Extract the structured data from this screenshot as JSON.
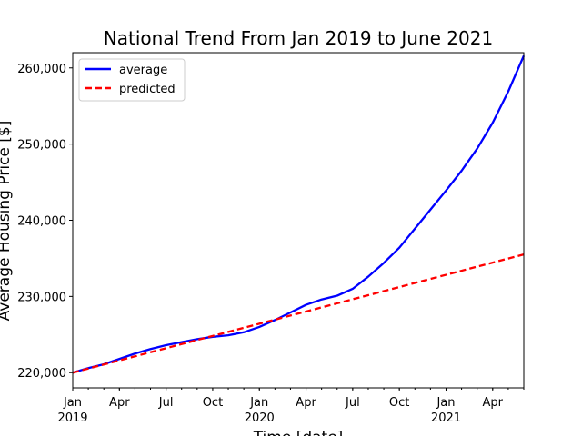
{
  "chart_data": {
    "type": "line",
    "title": "National Trend From Jan 2019 to June 2021",
    "xlabel": "Time [date]",
    "ylabel": "Average Housing Price [$]",
    "x": [
      "2019-01",
      "2019-02",
      "2019-03",
      "2019-04",
      "2019-05",
      "2019-06",
      "2019-07",
      "2019-08",
      "2019-09",
      "2019-10",
      "2019-11",
      "2019-12",
      "2020-01",
      "2020-02",
      "2020-03",
      "2020-04",
      "2020-05",
      "2020-06",
      "2020-07",
      "2020-08",
      "2020-09",
      "2020-10",
      "2020-11",
      "2020-12",
      "2021-01",
      "2021-02",
      "2021-03",
      "2021-04",
      "2021-05",
      "2021-06"
    ],
    "series": [
      {
        "name": "average",
        "color": "#0000ff",
        "style": "solid",
        "values": [
          220000,
          220600,
          221100,
          221800,
          222500,
          223100,
          223600,
          224000,
          224400,
          224700,
          224900,
          225300,
          226000,
          226900,
          227900,
          228900,
          229600,
          230100,
          231000,
          232600,
          234400,
          236400,
          238900,
          241400,
          243900,
          246500,
          249400,
          252800,
          256900,
          261600
        ]
      },
      {
        "name": "predicted",
        "color": "#ff0000",
        "style": "dashed",
        "values": [
          220000,
          220535,
          221070,
          221605,
          222140,
          222675,
          223210,
          223745,
          224280,
          224815,
          225350,
          225885,
          226420,
          226955,
          227490,
          228025,
          228560,
          229095,
          229630,
          230165,
          230700,
          231235,
          231770,
          232305,
          232840,
          233375,
          233910,
          234445,
          234980,
          235515
        ]
      }
    ],
    "yticks": [
      {
        "value": 220000,
        "label": "220,000"
      },
      {
        "value": 230000,
        "label": "230,000"
      },
      {
        "value": 240000,
        "label": "240,000"
      },
      {
        "value": 250000,
        "label": "250,000"
      },
      {
        "value": 260000,
        "label": "260,000"
      }
    ],
    "xticks": [
      {
        "index": 0,
        "label": "Jan",
        "sub": "2019"
      },
      {
        "index": 3,
        "label": "Apr",
        "sub": ""
      },
      {
        "index": 6,
        "label": "Jul",
        "sub": ""
      },
      {
        "index": 9,
        "label": "Oct",
        "sub": ""
      },
      {
        "index": 12,
        "label": "Jan",
        "sub": "2020"
      },
      {
        "index": 15,
        "label": "Apr",
        "sub": ""
      },
      {
        "index": 18,
        "label": "Jul",
        "sub": ""
      },
      {
        "index": 21,
        "label": "Oct",
        "sub": ""
      },
      {
        "index": 24,
        "label": "Jan",
        "sub": "2021"
      },
      {
        "index": 27,
        "label": "Apr",
        "sub": ""
      }
    ],
    "xlim_index": [
      0,
      29
    ],
    "ylim": [
      218000,
      262000
    ],
    "grid": false,
    "legend_position": "upper-left"
  }
}
